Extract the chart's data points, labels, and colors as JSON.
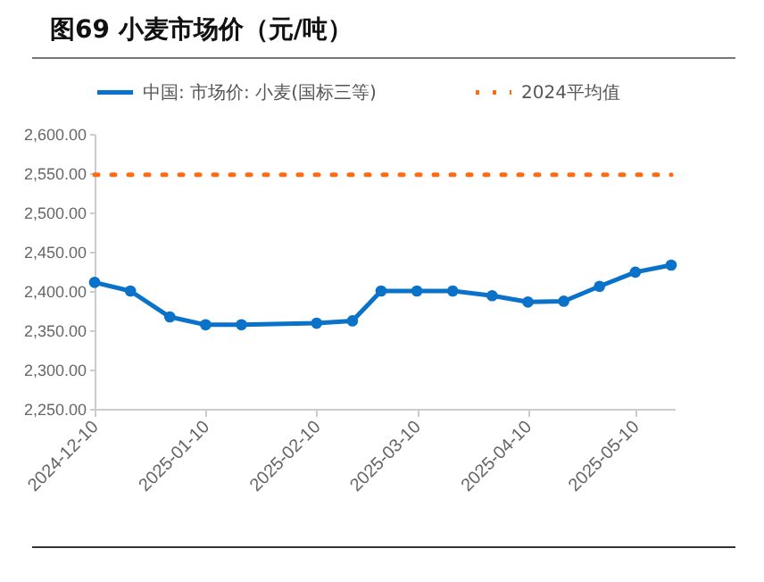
{
  "chart_data": {
    "type": "line",
    "title": "图69 小麦市场价（元/吨）",
    "x": [
      "2024-12-10",
      "2024-12-20",
      "2024-12-31",
      "2025-01-10",
      "2025-01-20",
      "2025-02-10",
      "2025-02-20",
      "2025-02-28",
      "2025-03-10",
      "2025-03-20",
      "2025-03-31",
      "2025-04-10",
      "2025-04-20",
      "2025-04-30",
      "2025-05-10",
      "2025-05-20"
    ],
    "series": [
      {
        "name": "中国: 市场价: 小麦(国标三等)",
        "color": "#0a72c8",
        "marker": "circle",
        "line_style": "solid",
        "values": [
          2411,
          2400,
          2367,
          2357,
          2357,
          2359,
          2362,
          2400,
          2400,
          2400,
          2394,
          2386,
          2387,
          2406,
          2424,
          2433
        ]
      },
      {
        "name": "2024平均值",
        "color": "#ff6a13",
        "marker": "none",
        "line_style": "dotted",
        "values": [
          2548,
          2548,
          2548,
          2548,
          2548,
          2548,
          2548,
          2548,
          2548,
          2548,
          2548,
          2548,
          2548,
          2548,
          2548,
          2548
        ]
      }
    ],
    "xlim": [
      "2024-12-10",
      "2025-05-21"
    ],
    "xticks": [
      "2024-12-10",
      "2025-01-10",
      "2025-02-10",
      "2025-03-10",
      "2025-04-10",
      "2025-05-10"
    ],
    "ylim": [
      2250,
      2600
    ],
    "yticks": [
      {
        "value": 2250,
        "label": "2,250.00"
      },
      {
        "value": 2300,
        "label": "2,300.00"
      },
      {
        "value": 2350,
        "label": "2,350.00"
      },
      {
        "value": 2400,
        "label": "2,400.00"
      },
      {
        "value": 2450,
        "label": "2,450.00"
      },
      {
        "value": 2500,
        "label": "2,500.00"
      },
      {
        "value": 2550,
        "label": "2,550.00"
      },
      {
        "value": 2600,
        "label": "2,600.00"
      }
    ],
    "grid": false,
    "legend": "top"
  }
}
